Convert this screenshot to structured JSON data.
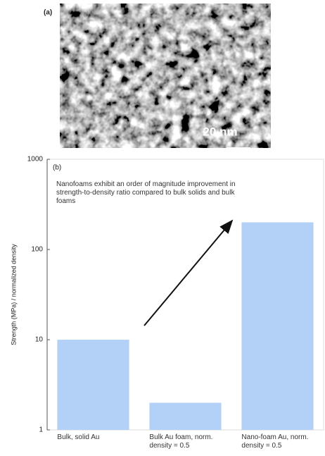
{
  "panel_a": {
    "label": "(a)",
    "scale_bar_label": "20 nm"
  },
  "chart_data": {
    "type": "bar",
    "panel_label": "(b)",
    "y_label": "Strength (MPa) / normalized density",
    "annotation": "Nanofoams exhibit an order of magnitude improvement in strength-to-density ratio compared to bulk solids and bulk foams",
    "categories": [
      "Bulk, solid Au",
      "Bulk Au foam, norm. density = 0.5",
      "Nano-foam Au, norm. density = 0.5"
    ],
    "values": [
      10,
      2,
      200
    ],
    "color": "#b3d1f7",
    "ylim": [
      1,
      1000
    ],
    "yticks": [
      1,
      10,
      100,
      1000
    ],
    "log_scale": true
  }
}
